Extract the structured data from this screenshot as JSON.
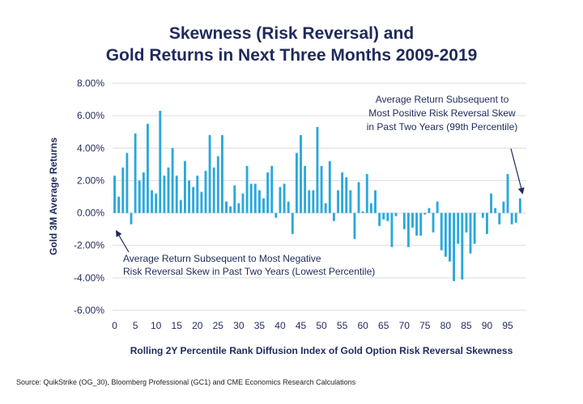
{
  "chart_data": {
    "type": "bar",
    "title_line1": "Skewness (Risk Reversal) and",
    "title_line2": "Gold Returns in Next Three Months 2009-2019",
    "xlabel": "Rolling 2Y Percentile Rank Diffusion Index of Gold Option Risk Reversal Skewness",
    "ylabel": "Gold 3M Average Returns",
    "ylim": [
      -6,
      8
    ],
    "xlim": [
      0,
      99
    ],
    "yticks": [
      -6,
      -4,
      -2,
      0,
      2,
      4,
      6,
      8
    ],
    "ytick_labels": [
      "-6.00%",
      "-4.00%",
      "-2.00%",
      "0.00%",
      "2.00%",
      "4.00%",
      "6.00%",
      "8.00%"
    ],
    "xticks": [
      0,
      5,
      10,
      15,
      20,
      25,
      30,
      35,
      40,
      45,
      50,
      55,
      60,
      65,
      70,
      75,
      80,
      85,
      90,
      95
    ],
    "x": [
      0,
      1,
      2,
      3,
      4,
      5,
      6,
      7,
      8,
      9,
      10,
      11,
      12,
      13,
      14,
      15,
      16,
      17,
      18,
      19,
      20,
      21,
      22,
      23,
      24,
      25,
      26,
      27,
      28,
      29,
      30,
      31,
      32,
      33,
      34,
      35,
      36,
      37,
      38,
      39,
      40,
      41,
      42,
      43,
      44,
      45,
      46,
      47,
      48,
      49,
      50,
      51,
      52,
      53,
      54,
      55,
      56,
      57,
      58,
      59,
      60,
      61,
      62,
      63,
      64,
      65,
      66,
      67,
      68,
      69,
      70,
      71,
      72,
      73,
      74,
      75,
      76,
      77,
      78,
      79,
      80,
      81,
      82,
      83,
      84,
      85,
      86,
      87,
      88,
      89,
      90,
      91,
      92,
      93,
      94,
      95,
      96,
      97,
      98,
      99
    ],
    "values": [
      2.3,
      1.0,
      2.8,
      3.7,
      -0.7,
      4.9,
      2.0,
      2.5,
      5.5,
      1.4,
      1.2,
      6.3,
      2.3,
      2.8,
      4.0,
      2.3,
      0.8,
      3.2,
      2.0,
      1.6,
      2.3,
      1.3,
      2.6,
      4.8,
      2.8,
      3.5,
      4.8,
      0.7,
      0.4,
      1.7,
      0.6,
      1.2,
      2.9,
      1.8,
      1.8,
      1.4,
      0.9,
      2.5,
      2.9,
      -0.3,
      1.6,
      1.8,
      0.7,
      -1.3,
      3.7,
      4.8,
      2.9,
      1.4,
      1.4,
      5.3,
      2.9,
      0.6,
      3.2,
      -0.5,
      1.4,
      2.5,
      2.2,
      1.4,
      -1.6,
      1.9,
      0.1,
      2.4,
      0.6,
      1.4,
      -0.8,
      -0.4,
      -0.5,
      -2.1,
      -0.2,
      0.0,
      -1.0,
      -2.1,
      -0.9,
      -1.4,
      -1.4,
      -0.1,
      0.3,
      -1.2,
      0.7,
      -2.3,
      -2.7,
      -3.0,
      -4.2,
      -1.9,
      -4.1,
      -1.2,
      -2.5,
      -1.9,
      0.0,
      -0.3,
      -1.3,
      1.2,
      0.3,
      -0.7,
      0.7,
      2.4,
      -0.7,
      -0.6,
      0.9,
      0.0
    ],
    "bar_color": "#29a8dc",
    "annotations": [
      {
        "lines": [
          "Average Return Subsequent to",
          "Most Positive Risk Reversal Skew",
          "in Past Two Years (99th Percentile)"
        ],
        "target_x": 99,
        "target_y": 0.9
      },
      {
        "lines": [
          "Average Return Subsequent to Most Negative",
          "Risk Reversal Skew in Past Two Years (Lowest Percentile)"
        ],
        "target_x": 0,
        "target_y": -0.6
      }
    ],
    "source": "Source: QuikStrike (OG_30), Bloomberg Professional (GC1) and CME Economics Research Calculations"
  }
}
